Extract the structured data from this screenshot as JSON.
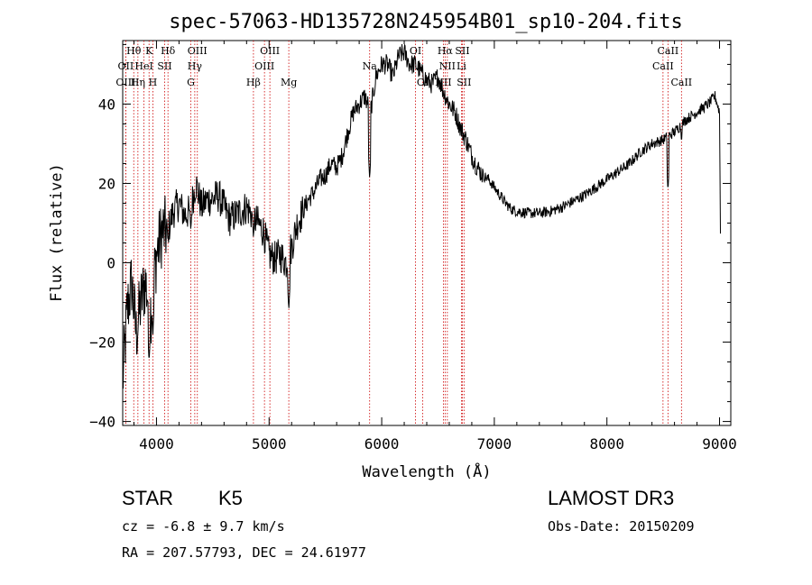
{
  "chart_data": {
    "type": "line",
    "title": "spec-57063-HD135728N245954B01_sp10-204.fits",
    "xlabel": "Wavelength (Å)",
    "ylabel": "Flux (relative)",
    "xlim": [
      3700,
      9100
    ],
    "ylim": [
      -41,
      56
    ],
    "xticks": [
      4000,
      5000,
      6000,
      7000,
      8000,
      9000
    ],
    "yticks": [
      -40,
      -20,
      0,
      20,
      40
    ],
    "spectrum_anchors": [
      [
        3700,
        -30
      ],
      [
        3740,
        -12
      ],
      [
        3780,
        -5
      ],
      [
        3820,
        -18
      ],
      [
        3860,
        -10
      ],
      [
        3900,
        -5
      ],
      [
        3950,
        -12
      ],
      [
        4000,
        2
      ],
      [
        4050,
        8
      ],
      [
        4100,
        8
      ],
      [
        4150,
        13
      ],
      [
        4200,
        15
      ],
      [
        4250,
        12
      ],
      [
        4300,
        13
      ],
      [
        4350,
        20
      ],
      [
        4400,
        14
      ],
      [
        4450,
        16
      ],
      [
        4500,
        16
      ],
      [
        4550,
        17
      ],
      [
        4600,
        14
      ],
      [
        4650,
        11
      ],
      [
        4700,
        12
      ],
      [
        4750,
        13
      ],
      [
        4800,
        14
      ],
      [
        4850,
        12
      ],
      [
        4900,
        10
      ],
      [
        4950,
        8
      ],
      [
        5000,
        2
      ],
      [
        5050,
        1
      ],
      [
        5100,
        2
      ],
      [
        5150,
        0
      ],
      [
        5200,
        4
      ],
      [
        5250,
        10
      ],
      [
        5300,
        13
      ],
      [
        5350,
        16
      ],
      [
        5400,
        18
      ],
      [
        5450,
        21
      ],
      [
        5500,
        22
      ],
      [
        5550,
        25
      ],
      [
        5600,
        24
      ],
      [
        5650,
        27
      ],
      [
        5700,
        33
      ],
      [
        5750,
        38
      ],
      [
        5800,
        40
      ],
      [
        5850,
        42
      ],
      [
        5900,
        38
      ],
      [
        5950,
        47
      ],
      [
        6000,
        50
      ],
      [
        6050,
        50
      ],
      [
        6100,
        47
      ],
      [
        6150,
        52
      ],
      [
        6200,
        53
      ],
      [
        6250,
        50
      ],
      [
        6300,
        50
      ],
      [
        6350,
        48
      ],
      [
        6400,
        46
      ],
      [
        6450,
        45
      ],
      [
        6500,
        47
      ],
      [
        6550,
        43
      ],
      [
        6600,
        40
      ],
      [
        6650,
        38
      ],
      [
        6700,
        34
      ],
      [
        6750,
        31
      ],
      [
        6800,
        27
      ],
      [
        6850,
        24
      ],
      [
        6900,
        22
      ],
      [
        6950,
        21
      ],
      [
        7000,
        19
      ],
      [
        7050,
        17
      ],
      [
        7100,
        15
      ],
      [
        7150,
        13.5
      ],
      [
        7200,
        13
      ],
      [
        7300,
        12.5
      ],
      [
        7400,
        12.5
      ],
      [
        7500,
        13
      ],
      [
        7600,
        14
      ],
      [
        7700,
        15.5
      ],
      [
        7800,
        17
      ],
      [
        7900,
        19
      ],
      [
        8000,
        21
      ],
      [
        8100,
        23
      ],
      [
        8200,
        25
      ],
      [
        8300,
        28
      ],
      [
        8400,
        30
      ],
      [
        8500,
        31
      ],
      [
        8600,
        33
      ],
      [
        8700,
        36
      ],
      [
        8800,
        38
      ],
      [
        8900,
        40
      ],
      [
        8960,
        42
      ],
      [
        9000,
        38
      ],
      [
        9010,
        0
      ]
    ],
    "spectrum_dips": [
      [
        3934,
        -25
      ],
      [
        3968,
        -18
      ],
      [
        4102,
        5
      ],
      [
        4305,
        8
      ],
      [
        4861,
        6
      ],
      [
        5175,
        -12
      ],
      [
        5893,
        21
      ],
      [
        6563,
        42
      ],
      [
        8542,
        18
      ],
      [
        8662,
        30
      ]
    ],
    "emission_lines": [
      {
        "label": "Hθ",
        "wavelength": 3798,
        "row": 1
      },
      {
        "label": "OII",
        "wavelength": 3727,
        "row": 2
      },
      {
        "label": "OIII",
        "wavelength": 3727,
        "row": 3
      },
      {
        "label": "K",
        "wavelength": 3934,
        "row": 1
      },
      {
        "label": "HeI",
        "wavelength": 3889,
        "row": 2
      },
      {
        "label": "Hη",
        "wavelength": 3835,
        "row": 3
      },
      {
        "label": "SII",
        "wavelength": 4072,
        "row": 2
      },
      {
        "label": "H",
        "wavelength": 3968,
        "row": 3
      },
      {
        "label": "Hδ",
        "wavelength": 4102,
        "row": 1
      },
      {
        "label": "OIII",
        "wavelength": 4363,
        "row": 1
      },
      {
        "label": "Hγ",
        "wavelength": 4340,
        "row": 2
      },
      {
        "label": "G",
        "wavelength": 4305,
        "row": 3
      },
      {
        "label": "OIII",
        "wavelength": 5007,
        "row": 1
      },
      {
        "label": "OIII",
        "wavelength": 4959,
        "row": 2
      },
      {
        "label": "Hβ",
        "wavelength": 4861,
        "row": 3
      },
      {
        "label": "Mg",
        "wavelength": 5175,
        "row": 3
      },
      {
        "label": "Na",
        "wavelength": 5893,
        "row": 2
      },
      {
        "label": "OI",
        "wavelength": 6300,
        "row": 1
      },
      {
        "label": "OI",
        "wavelength": 6364,
        "row": 3
      },
      {
        "label": "Hα",
        "wavelength": 6563,
        "row": 1
      },
      {
        "label": "SII",
        "wavelength": 6716,
        "row": 1
      },
      {
        "label": "NII",
        "wavelength": 6583,
        "row": 2
      },
      {
        "label": "Li",
        "wavelength": 6708,
        "row": 2
      },
      {
        "label": "NII",
        "wavelength": 6548,
        "row": 3
      },
      {
        "label": "SII",
        "wavelength": 6731,
        "row": 3
      },
      {
        "label": "CaII",
        "wavelength": 8542,
        "row": 1
      },
      {
        "label": "CaII",
        "wavelength": 8498,
        "row": 2
      },
      {
        "label": "CaII",
        "wavelength": 8662,
        "row": 3
      }
    ]
  },
  "info": {
    "object_class": "STAR",
    "subclass": "K5",
    "survey": "LAMOST DR3",
    "cz": "cz = -6.8 ± 9.7 km/s",
    "obs_date": "Obs-Date: 20150209",
    "coords": "RA = 207.57793, DEC =  24.61977"
  },
  "colors": {
    "line": "#000000",
    "marker": "#cc0000"
  }
}
